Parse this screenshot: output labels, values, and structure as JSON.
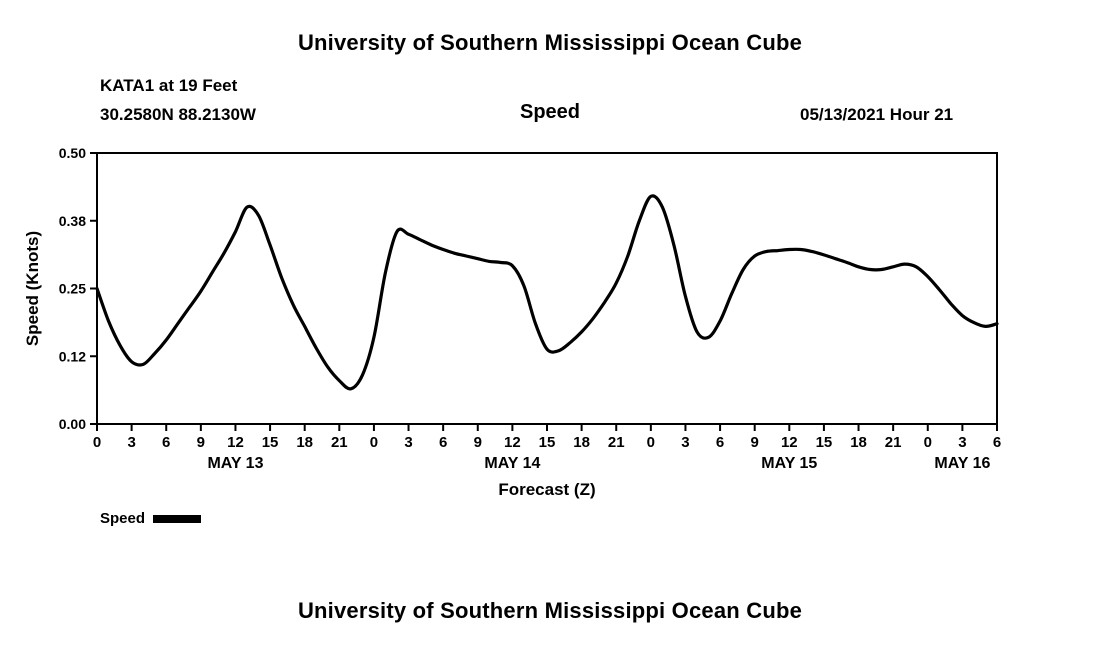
{
  "page": {
    "top_title": "University of Southern Mississippi Ocean Cube",
    "bottom_title": "University of Southern Mississippi Ocean Cube"
  },
  "header": {
    "station": "KATA1 at 19 Feet",
    "coordinates": "30.2580N  88.2130W",
    "plot_title": "Speed",
    "run_time": "05/13/2021 Hour 21"
  },
  "legend": {
    "label": "Speed",
    "swatch_color": "#000000"
  },
  "chart_data": {
    "type": "line",
    "title": "Speed",
    "xlabel": "Forecast (Z)",
    "ylabel": "Speed (Knots)",
    "ylim": [
      0,
      0.5
    ],
    "xlim_hours": [
      0,
      78
    ],
    "grid": false,
    "legend_position": "bottom-left",
    "line_color": "#000000",
    "line_width": 3.2,
    "y_tick_values": [
      0,
      0.125,
      0.25,
      0.375,
      0.5
    ],
    "y_tick_labels": [
      "0.00",
      "0.12",
      "0.25",
      "0.38",
      "0.50"
    ],
    "x_tick_hours": [
      0,
      3,
      6,
      9,
      12,
      15,
      18,
      21,
      24,
      27,
      30,
      33,
      36,
      39,
      42,
      45,
      48,
      51,
      54,
      57,
      60,
      63,
      66,
      69,
      72,
      75,
      78
    ],
    "x_tick_labels": [
      "0",
      "3",
      "6",
      "9",
      "12",
      "15",
      "18",
      "21",
      "0",
      "3",
      "6",
      "9",
      "12",
      "15",
      "18",
      "21",
      "0",
      "3",
      "6",
      "9",
      "12",
      "15",
      "18",
      "21",
      "0",
      "3",
      "6"
    ],
    "day_labels": [
      {
        "label": "MAY 13",
        "center_hour": 12
      },
      {
        "label": "MAY 14",
        "center_hour": 36
      },
      {
        "label": "MAY 15",
        "center_hour": 60
      },
      {
        "label": "MAY 16",
        "center_hour": 75
      }
    ],
    "series_name": "Speed",
    "x_hours": [
      0,
      1,
      2,
      3,
      4,
      5,
      6,
      7,
      8,
      9,
      10,
      11,
      12,
      13,
      14,
      15,
      16,
      17,
      18,
      19,
      20,
      21,
      22,
      23,
      24,
      25,
      26,
      27,
      28,
      29,
      30,
      31,
      32,
      33,
      34,
      35,
      36,
      37,
      38,
      39,
      40,
      41,
      42,
      43,
      44,
      45,
      46,
      47,
      48,
      49,
      50,
      51,
      52,
      53,
      54,
      55,
      56,
      57,
      58,
      59,
      60,
      61,
      62,
      63,
      64,
      65,
      66,
      67,
      68,
      69,
      70,
      71,
      72,
      73,
      74,
      75,
      76,
      77,
      78
    ],
    "values": [
      0.25,
      0.19,
      0.145,
      0.115,
      0.11,
      0.13,
      0.155,
      0.185,
      0.215,
      0.245,
      0.28,
      0.315,
      0.355,
      0.4,
      0.385,
      0.33,
      0.27,
      0.22,
      0.18,
      0.14,
      0.105,
      0.08,
      0.065,
      0.09,
      0.16,
      0.28,
      0.355,
      0.35,
      0.34,
      0.33,
      0.322,
      0.315,
      0.31,
      0.305,
      0.3,
      0.298,
      0.292,
      0.255,
      0.185,
      0.138,
      0.135,
      0.15,
      0.17,
      0.195,
      0.225,
      0.26,
      0.31,
      0.375,
      0.42,
      0.4,
      0.33,
      0.235,
      0.17,
      0.16,
      0.19,
      0.24,
      0.285,
      0.31,
      0.318,
      0.32,
      0.322,
      0.322,
      0.318,
      0.312,
      0.305,
      0.298,
      0.29,
      0.285,
      0.285,
      0.29,
      0.295,
      0.29,
      0.272,
      0.248,
      0.222,
      0.2,
      0.187,
      0.18,
      0.185
    ]
  }
}
